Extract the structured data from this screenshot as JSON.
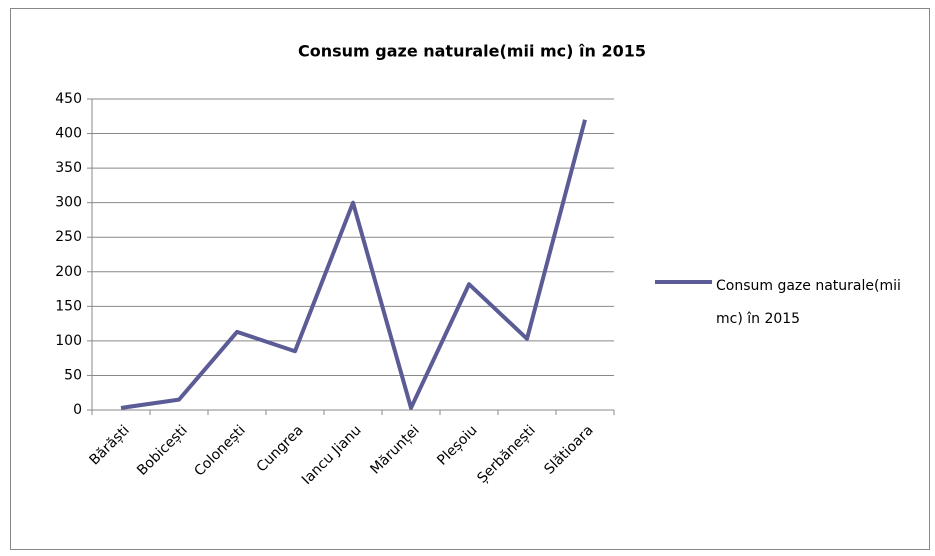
{
  "chart_data": {
    "type": "line",
    "title": "Consum gaze naturale(mii mc) în 2015",
    "categories": [
      "Bărăști",
      "Bobicești",
      "Colonești",
      "Cungrea",
      "Iancu Jianu",
      "Mărunței",
      "Pleșoiu",
      "Șerbănești",
      "Slătioara"
    ],
    "series": [
      {
        "name": "Consum gaze naturale(mii mc) în 2015",
        "color": "#5b5b96",
        "values": [
          3,
          15,
          113,
          85,
          300,
          3,
          182,
          103,
          420
        ]
      }
    ],
    "ylim": [
      0,
      450
    ],
    "yticks": [
      0,
      50,
      100,
      150,
      200,
      250,
      300,
      350,
      400,
      450
    ],
    "grid": true,
    "legend": "right"
  }
}
